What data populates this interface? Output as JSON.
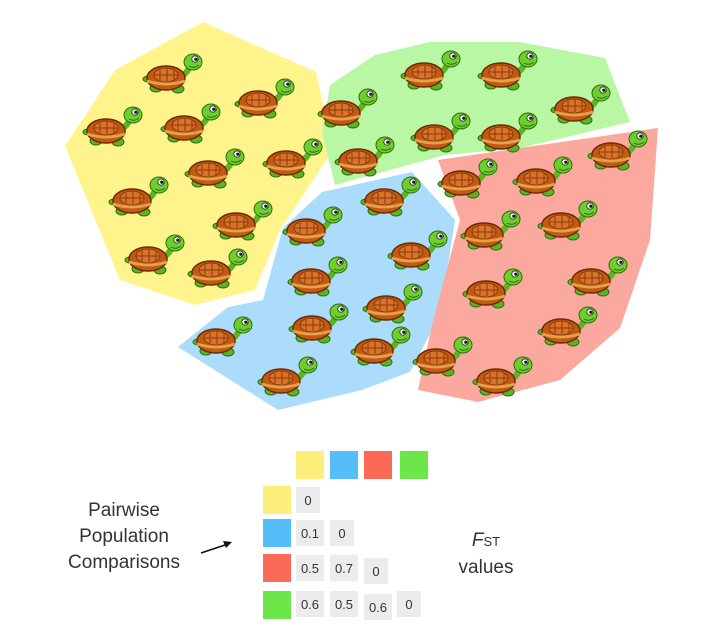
{
  "colors": {
    "yellow": "#fdef7b",
    "blue": "#55bdf8",
    "red": "#fb6957",
    "green": "#6de64a"
  },
  "populations": [
    {
      "name": "yellow",
      "fill": "#fff48c",
      "turtles": 11
    },
    {
      "name": "green",
      "fill": "#baf7a5",
      "turtles": 9
    },
    {
      "name": "blue",
      "fill": "#acdcfb",
      "turtles": 10
    },
    {
      "name": "red",
      "fill": "#fba89e",
      "turtles": 10
    }
  ],
  "legend": {
    "left_label_lines": [
      "Pairwise",
      "Population",
      "Comparisons"
    ],
    "fst_symbol": "F",
    "fst_subscript": "ST",
    "fst_word": "values"
  },
  "matrix": [
    [
      "0"
    ],
    [
      "0.1",
      "0"
    ],
    [
      "0.5",
      "0.7",
      "0"
    ],
    [
      "0.6",
      "0.5",
      "0.6",
      "0"
    ]
  ]
}
